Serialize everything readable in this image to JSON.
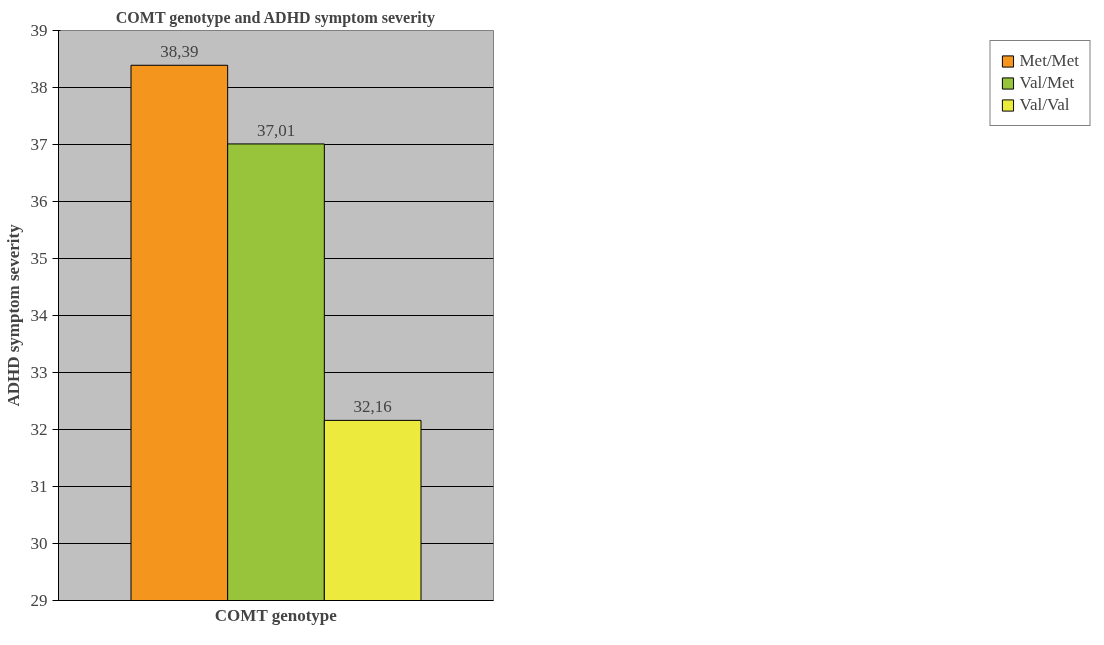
{
  "chart_data": {
    "type": "bar",
    "title": "COMT genotype and ADHD symptom severity",
    "xlabel": "COMT genotype",
    "ylabel": "ADHD symptom severity",
    "categories": [
      null
    ],
    "series": [
      {
        "name": "Met/Met",
        "color": "#f4961e",
        "values": [
          38.39
        ],
        "value_labels": [
          "38,39"
        ]
      },
      {
        "name": "Val/Met",
        "color": "#98c43c",
        "values": [
          37.01
        ],
        "value_labels": [
          "37,01"
        ]
      },
      {
        "name": "Val/Val",
        "color": "#ecea3c",
        "values": [
          32.16
        ],
        "value_labels": [
          "32,16"
        ]
      }
    ],
    "ylim": [
      29,
      39
    ],
    "yticks": [
      29,
      30,
      31,
      32,
      33,
      34,
      35,
      36,
      37,
      38,
      39
    ],
    "grid": "y",
    "legend": "right",
    "tick_labels": "y"
  }
}
